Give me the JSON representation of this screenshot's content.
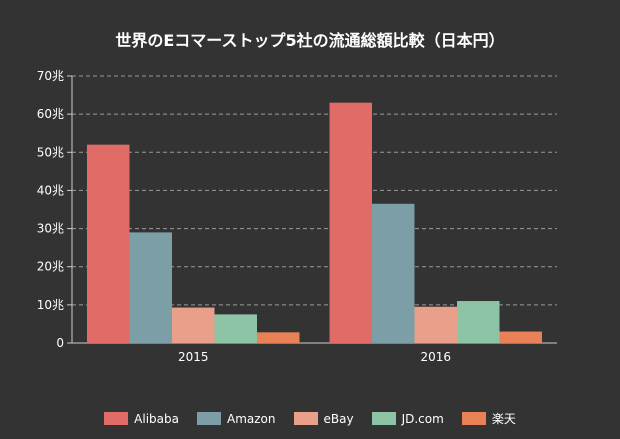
{
  "chart_data": {
    "type": "bar",
    "title": "世界のEコマーストップ5社の流通総額比較（日本円）",
    "categories": [
      "2015",
      "2016"
    ],
    "series": [
      {
        "name": "Alibaba",
        "color": "#e06b67",
        "values": [
          52,
          63
        ]
      },
      {
        "name": "Amazon",
        "color": "#7c9ea6",
        "values": [
          29,
          36.5
        ]
      },
      {
        "name": "eBay",
        "color": "#e8a08a",
        "values": [
          9.3,
          9.5
        ]
      },
      {
        "name": "JD.com",
        "color": "#8ec4a6",
        "values": [
          7.5,
          11
        ]
      },
      {
        "name": "楽天",
        "color": "#e88155",
        "values": [
          2.8,
          3
        ]
      }
    ],
    "ylim": [
      0,
      70
    ],
    "yticks": [
      "0",
      "10兆",
      "20兆",
      "30兆",
      "40兆",
      "50兆",
      "60兆",
      "70兆"
    ],
    "grid": true,
    "legend_position": "bottom"
  }
}
